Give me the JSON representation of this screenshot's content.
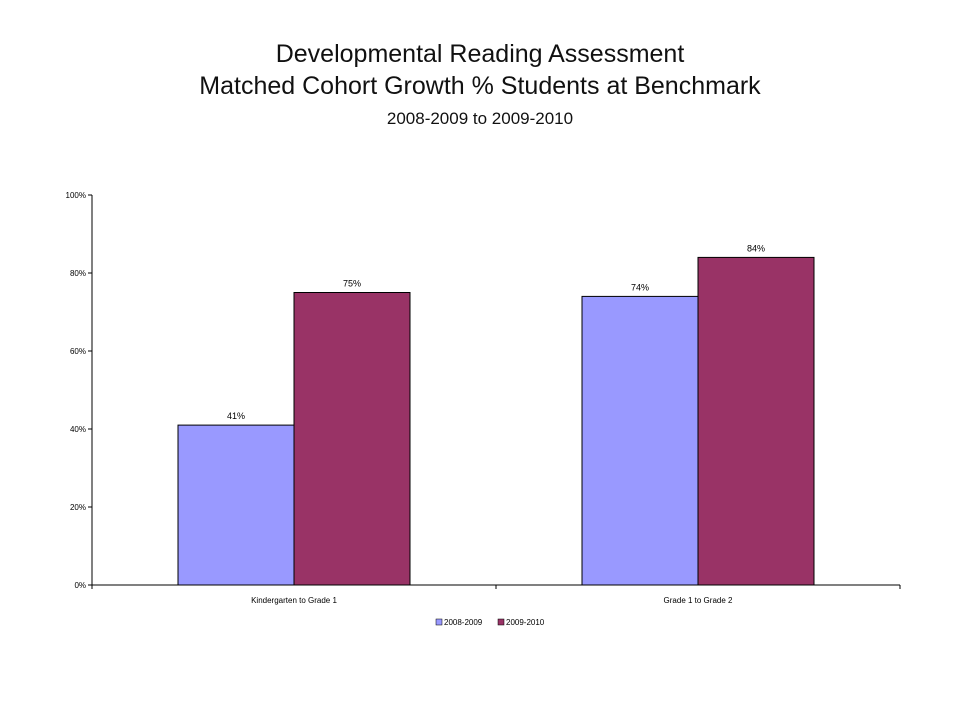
{
  "header": {
    "title_line1": "Developmental Reading Assessment",
    "title_line2": "Matched Cohort Growth % Students at Benchmark",
    "subtitle": "2008-2009 to 2009-2010"
  },
  "chart_data": {
    "type": "bar",
    "categories": [
      "Kindergarten to Grade 1",
      "Grade 1 to Grade 2"
    ],
    "series": [
      {
        "name": "2008-2009",
        "values": [
          41,
          74
        ],
        "labels": [
          "41%",
          "74%"
        ],
        "color": "#9999ff"
      },
      {
        "name": "2009-2010",
        "values": [
          75,
          84
        ],
        "labels": [
          "75%",
          "84%"
        ],
        "color": "#993366"
      }
    ],
    "yticks": [
      0,
      20,
      40,
      60,
      80,
      100
    ],
    "ytick_labels": [
      "0%",
      "20%",
      "40%",
      "60%",
      "80%",
      "100%"
    ],
    "ylim": [
      0,
      100
    ],
    "grid": false,
    "legend_position": "bottom"
  }
}
